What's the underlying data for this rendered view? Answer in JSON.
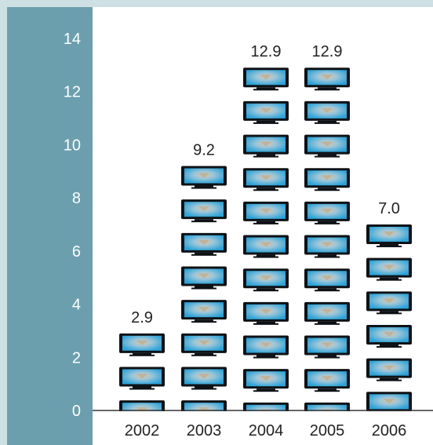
{
  "chart_data": {
    "type": "bar",
    "style": "pictogram",
    "icon": "tv-icon",
    "categories": [
      "2002",
      "2003",
      "2004",
      "2005",
      "2006"
    ],
    "values": [
      2.9,
      9.2,
      12.9,
      12.9,
      7.0
    ],
    "data_labels": [
      "2.9",
      "9.2",
      "12.9",
      "12.9",
      "7.0"
    ],
    "title": "",
    "xlabel": "",
    "ylabel": "",
    "ylim": [
      0,
      14
    ],
    "yticks": [
      0,
      2,
      4,
      6,
      8,
      10,
      12,
      14
    ],
    "grid": false,
    "legend": "none"
  },
  "colors": {
    "frame": "#cfe0e4",
    "axis_panel": "#6b9fae",
    "plot_background": "#ffffff",
    "tv_body": "#0e1216",
    "tv_screen": "#2aa3d8",
    "tv_screen_center": "#d4c5ad",
    "axis_line": "#333333"
  }
}
